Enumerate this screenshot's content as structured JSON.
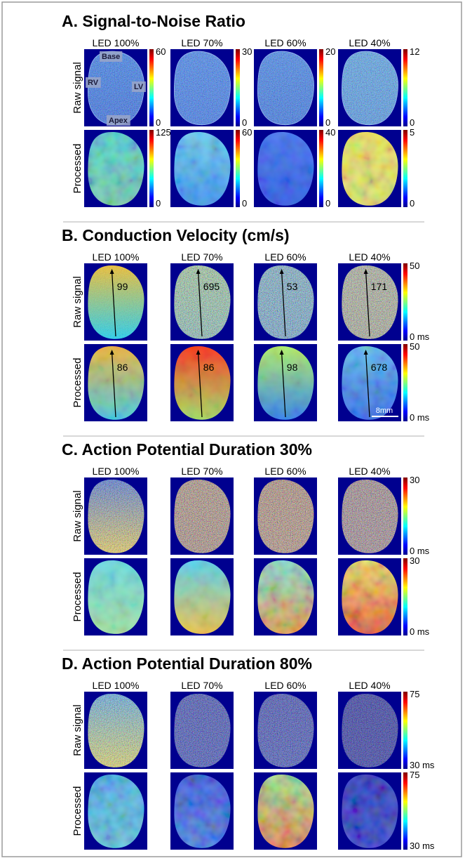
{
  "panels": [
    {
      "title": "A. Signal-to-Noise Ratio",
      "columns": [
        "LED 100%",
        "LED 70%",
        "LED 60%",
        "LED 40%"
      ],
      "rows": [
        "Raw signal",
        "Processed"
      ],
      "colorbars": [
        [
          {
            "top": 60,
            "bottom": 0
          },
          {
            "top": 30,
            "bottom": 0
          },
          {
            "top": 20,
            "bottom": 0
          },
          {
            "top": 12,
            "bottom": 0
          }
        ],
        [
          {
            "top": 125,
            "bottom": 0
          },
          {
            "top": 60,
            "bottom": 0
          },
          {
            "top": 40,
            "bottom": 0
          },
          {
            "top": 5,
            "bottom": 0
          }
        ]
      ],
      "annotations": [
        "Base",
        "RV",
        "LV",
        "Apex"
      ]
    },
    {
      "title": "B. Conduction Velocity (cm/s)",
      "columns": [
        "LED 100%",
        "LED 70%",
        "LED 60%",
        "LED 40%"
      ],
      "rows": [
        "Raw signal",
        "Processed"
      ],
      "colorbars": [
        {
          "top": 50,
          "bottom": "0 ms"
        },
        {
          "top": 50,
          "bottom": "0 ms"
        }
      ],
      "values": [
        [
          99,
          695,
          53,
          171
        ],
        [
          86,
          86,
          98,
          678
        ]
      ],
      "scale_bar": "8mm"
    },
    {
      "title": "C. Action Potential Duration 30%",
      "columns": [
        "LED 100%",
        "LED 70%",
        "LED 60%",
        "LED 40%"
      ],
      "rows": [
        "Raw signal",
        "Processed"
      ],
      "colorbars": [
        {
          "top": 30,
          "bottom": "0 ms"
        },
        {
          "top": 30,
          "bottom": "0 ms"
        }
      ]
    },
    {
      "title": "D. Action Potential Duration 80%",
      "columns": [
        "LED 100%",
        "LED 70%",
        "LED 60%",
        "LED 40%"
      ],
      "rows": [
        "Raw signal",
        "Processed"
      ],
      "colorbars": [
        {
          "top": 75,
          "bottom": "30 ms"
        },
        {
          "top": 75,
          "bottom": "30 ms"
        }
      ]
    }
  ]
}
